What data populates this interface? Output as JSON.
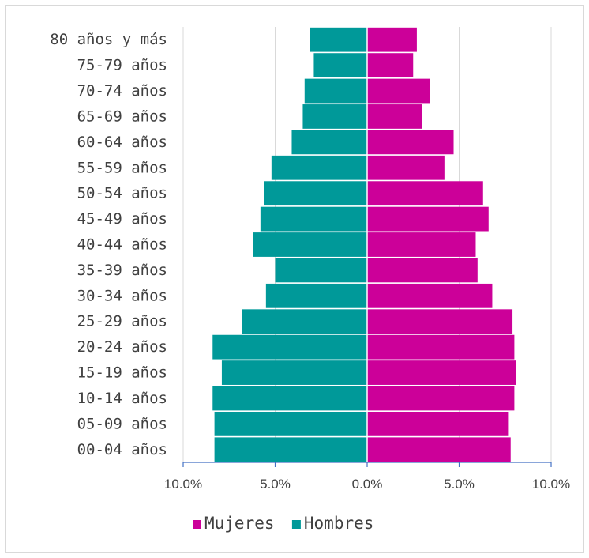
{
  "chart_data": {
    "type": "bar",
    "orientation": "horizontal",
    "layout": "population-pyramid",
    "categories": [
      "80 años y más",
      "75-79 años",
      "70-74 años",
      "65-69 años",
      "60-64 años",
      "55-59 años",
      "50-54 años",
      "45-49 años",
      "40-44 años",
      "35-39 años",
      "30-34 años",
      "25-29 años",
      "20-24 años",
      "15-19 años",
      "10-14 años",
      "05-09 años",
      "00-04 años"
    ],
    "series": [
      {
        "name": "Mujeres",
        "color": "#CC0099",
        "side": "right",
        "values": [
          2.7,
          2.5,
          3.4,
          3.0,
          4.7,
          4.2,
          6.3,
          6.6,
          5.9,
          6.0,
          6.8,
          7.9,
          8.0,
          8.1,
          8.0,
          7.7,
          7.8
        ]
      },
      {
        "name": "Hombres",
        "color": "#009999",
        "side": "left",
        "values": [
          3.1,
          2.9,
          3.4,
          3.5,
          4.1,
          5.2,
          5.6,
          5.8,
          6.2,
          5.0,
          5.5,
          6.8,
          8.4,
          7.9,
          8.4,
          8.3,
          8.3
        ]
      }
    ],
    "xlim": [
      -10,
      10
    ],
    "xticks": [
      -10,
      -5,
      0,
      5,
      10
    ],
    "xtick_labels": [
      "10.0%",
      "5.0%",
      "0.0%",
      "5.0%",
      "10.0%"
    ],
    "grid": "vertical",
    "legend_position": "bottom",
    "legend_order": [
      "Mujeres",
      "Hombres"
    ]
  }
}
